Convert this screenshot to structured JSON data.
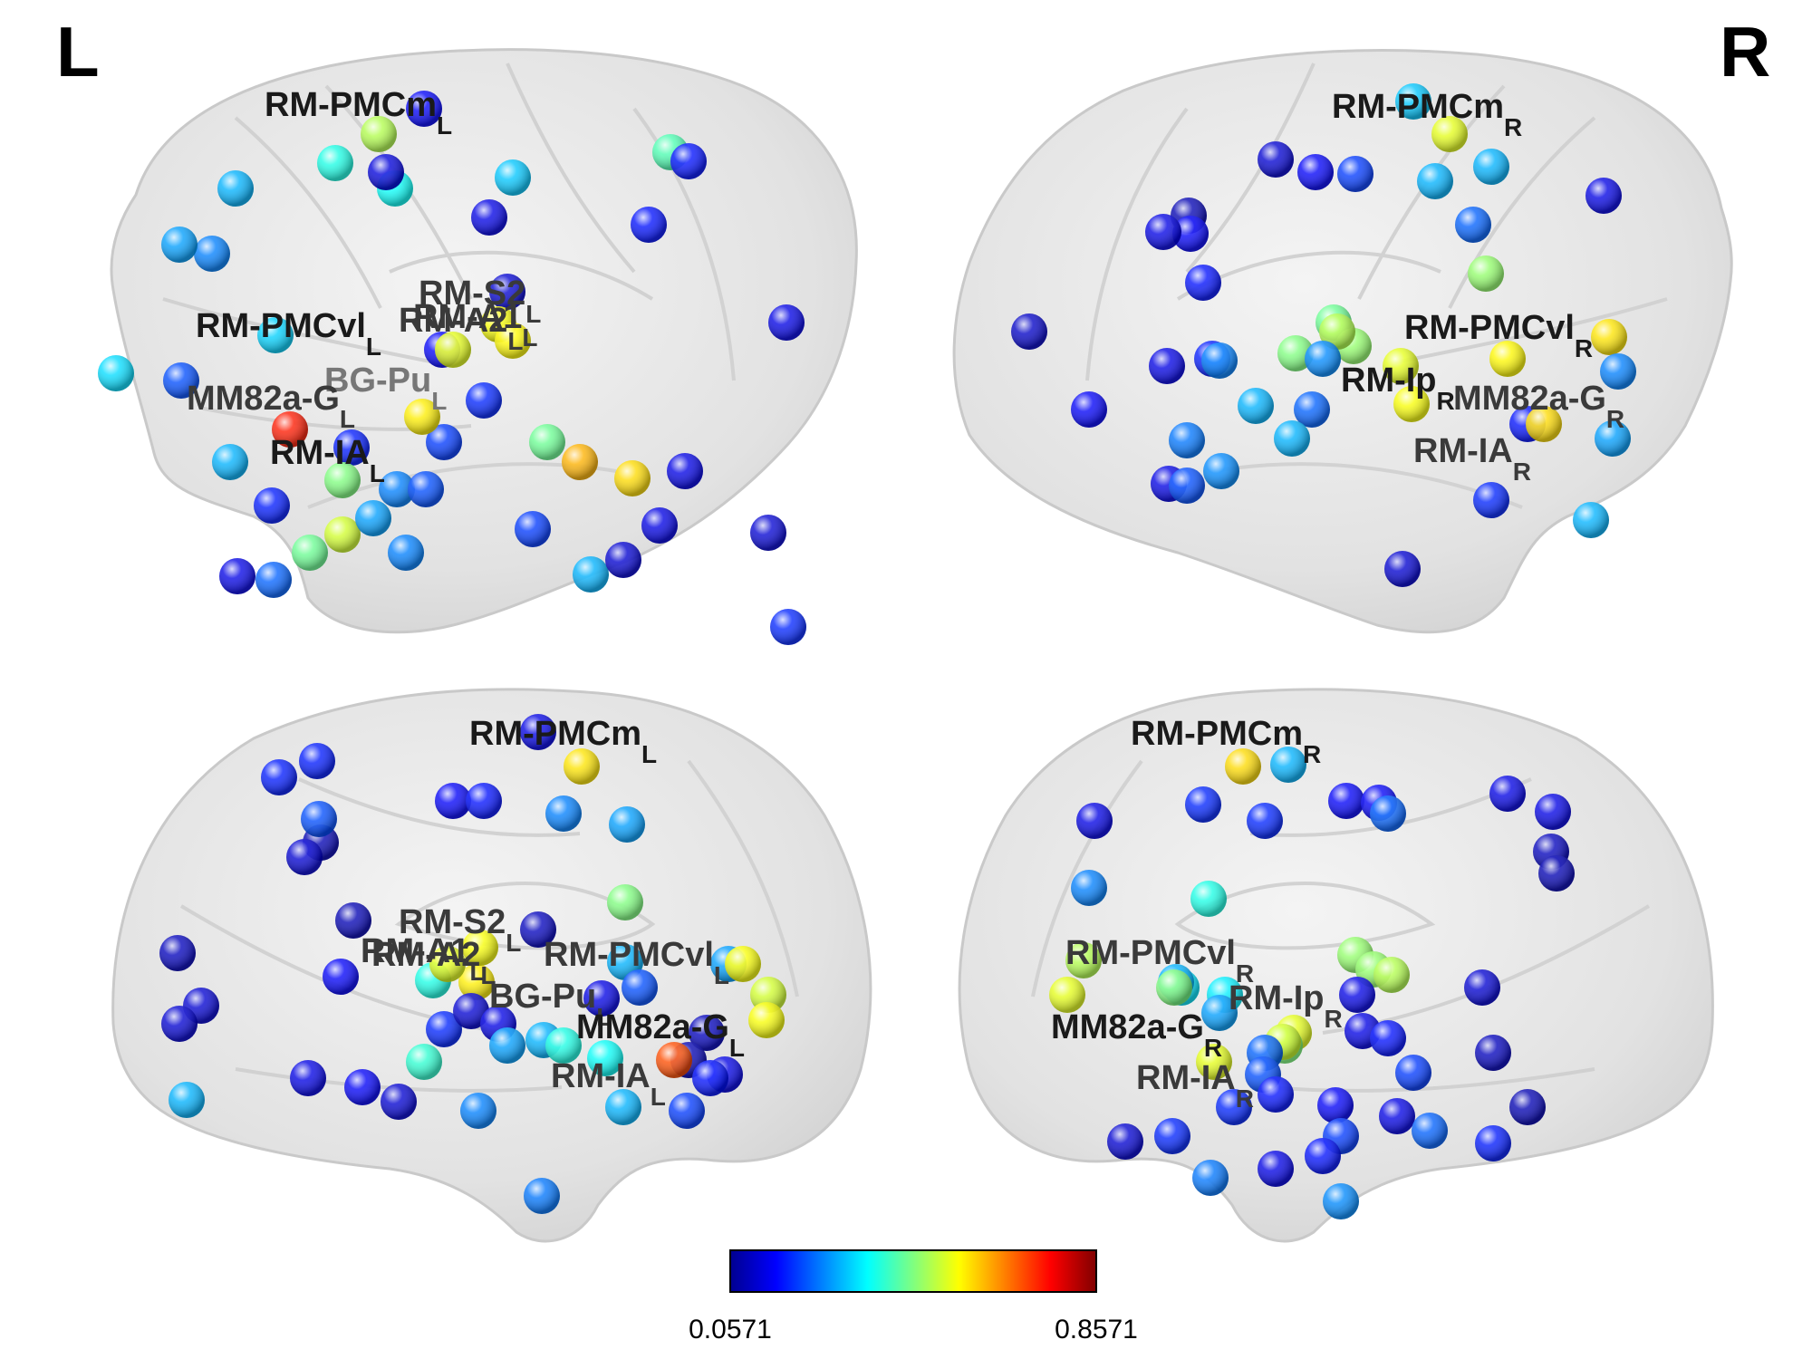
{
  "hemispheres": {
    "left_label": "L",
    "right_label": "R"
  },
  "colorbar": {
    "min_label": "0.0571",
    "max_label": "0.8571",
    "min": 0.0571,
    "max": 0.8571,
    "colormap": "jet"
  },
  "panels": [
    {
      "id": "top-left-lateral",
      "nodes": [
        0.12,
        0.55,
        0.4,
        0.38,
        0.3,
        0.32,
        0.25,
        0.1,
        0.08,
        0.12,
        0.33,
        0.09,
        0.45,
        0.6,
        0.62,
        0.63,
        0.2,
        0.7,
        0.1,
        0.14,
        0.28,
        0.48,
        0.25,
        0.18,
        0.14,
        0.66,
        0.64,
        0.15,
        0.2,
        0.48,
        0.3,
        0.1,
        0.22,
        0.85,
        0.15,
        0.58,
        0.18,
        0.3,
        0.25,
        0.08,
        0.5,
        0.1,
        0.08,
        0.16,
        0.05,
        0.12,
        0.34,
        0.28,
        0.16,
        0.1
      ],
      "labels": [
        {
          "base": "RM-PMCm",
          "sub": "L",
          "shade": "dark"
        },
        {
          "base": "RM-PMCvl",
          "sub": "L",
          "shade": "dark"
        },
        {
          "base": "RM-S2",
          "sub": "L",
          "shade": "mid"
        },
        {
          "base": "RM-A2",
          "sub": "L",
          "shade": "mid"
        },
        {
          "base": "RM-A1",
          "sub": "L",
          "shade": "mid"
        },
        {
          "base": "BG-Pu",
          "sub": "L",
          "shade": "light"
        },
        {
          "base": "MM82a-G",
          "sub": "L",
          "shade": "mid"
        },
        {
          "base": "RM-IA",
          "sub": "L",
          "shade": "dark"
        }
      ]
    },
    {
      "id": "top-right-lateral",
      "nodes": [
        0.32,
        0.6,
        0.18,
        0.12,
        0.3,
        0.3,
        0.08,
        0.22,
        0.1,
        0.05,
        0.12,
        0.1,
        0.14,
        0.07,
        0.15,
        0.1,
        0.48,
        0.52,
        0.5,
        0.55,
        0.25,
        0.6,
        0.62,
        0.3,
        0.22,
        0.63,
        0.52,
        0.65,
        0.25,
        0.16,
        0.3,
        0.14,
        0.28,
        0.66,
        0.3,
        0.26,
        0.1,
        0.12,
        0.24,
        0.2,
        0.26,
        0.08
      ],
      "labels": [
        {
          "base": "RM-PMCm",
          "sub": "R",
          "shade": "dark"
        },
        {
          "base": "RM-PMCvl",
          "sub": "R",
          "shade": "dark"
        },
        {
          "base": "RM-Ip",
          "sub": "R",
          "shade": "dark"
        },
        {
          "base": "MM82a-G",
          "sub": "R",
          "shade": "mid"
        },
        {
          "base": "RM-IA",
          "sub": "R",
          "shade": "mid"
        }
      ]
    },
    {
      "id": "bottom-left-medial",
      "nodes": [
        0.1,
        0.65,
        0.15,
        0.15,
        0.12,
        0.14,
        0.25,
        0.28,
        0.05,
        0.08,
        0.2,
        0.05,
        0.12,
        0.06,
        0.5,
        0.4,
        0.64,
        0.6,
        0.62,
        0.16,
        0.08,
        0.1,
        0.28,
        0.3,
        0.62,
        0.58,
        0.1,
        0.2,
        0.3,
        0.4,
        0.28,
        0.06,
        0.05,
        0.8,
        0.38,
        0.1,
        0.14,
        0.62,
        0.06,
        0.08,
        0.08,
        0.3,
        0.42,
        0.1,
        0.12,
        0.25,
        0.18,
        0.3,
        0.08,
        0.24
      ],
      "labels": [
        {
          "base": "RM-PMCm",
          "sub": "L",
          "shade": "dark"
        },
        {
          "base": "RM-S2",
          "sub": "L",
          "shade": "mid"
        },
        {
          "base": "RM-A1",
          "sub": "L",
          "shade": "mid"
        },
        {
          "base": "RM-A2",
          "sub": "L",
          "shade": "mid"
        },
        {
          "base": "RM-PMCvl",
          "sub": "L",
          "shade": "mid"
        },
        {
          "base": "BG-Pu",
          "sub": "L",
          "shade": "mid"
        },
        {
          "base": "MM82a-G",
          "sub": "L",
          "shade": "dark"
        },
        {
          "base": "RM-IA",
          "sub": "L",
          "shade": "mid"
        }
      ]
    },
    {
      "id": "bottom-right-medial",
      "nodes": [
        0.66,
        0.3,
        0.12,
        0.12,
        0.22,
        0.16,
        0.1,
        0.1,
        0.06,
        0.05,
        0.1,
        0.16,
        0.25,
        0.08,
        0.4,
        0.52,
        0.52,
        0.55,
        0.35,
        0.3,
        0.55,
        0.6,
        0.5,
        0.1,
        0.36,
        0.28,
        0.6,
        0.5,
        0.58,
        0.1,
        0.14,
        0.18,
        0.6,
        0.22,
        0.2,
        0.16,
        0.14,
        0.06,
        0.05,
        0.15,
        0.12,
        0.18,
        0.1,
        0.22,
        0.08,
        0.16,
        0.14,
        0.24,
        0.1,
        0.26
      ],
      "labels": [
        {
          "base": "RM-PMCm",
          "sub": "R",
          "shade": "dark"
        },
        {
          "base": "RM-PMCvl",
          "sub": "R",
          "shade": "mid"
        },
        {
          "base": "RM-Ip",
          "sub": "R",
          "shade": "mid"
        },
        {
          "base": "MM82a-G",
          "sub": "R",
          "shade": "dark"
        },
        {
          "base": "RM-IA",
          "sub": "R",
          "shade": "mid"
        }
      ]
    }
  ]
}
